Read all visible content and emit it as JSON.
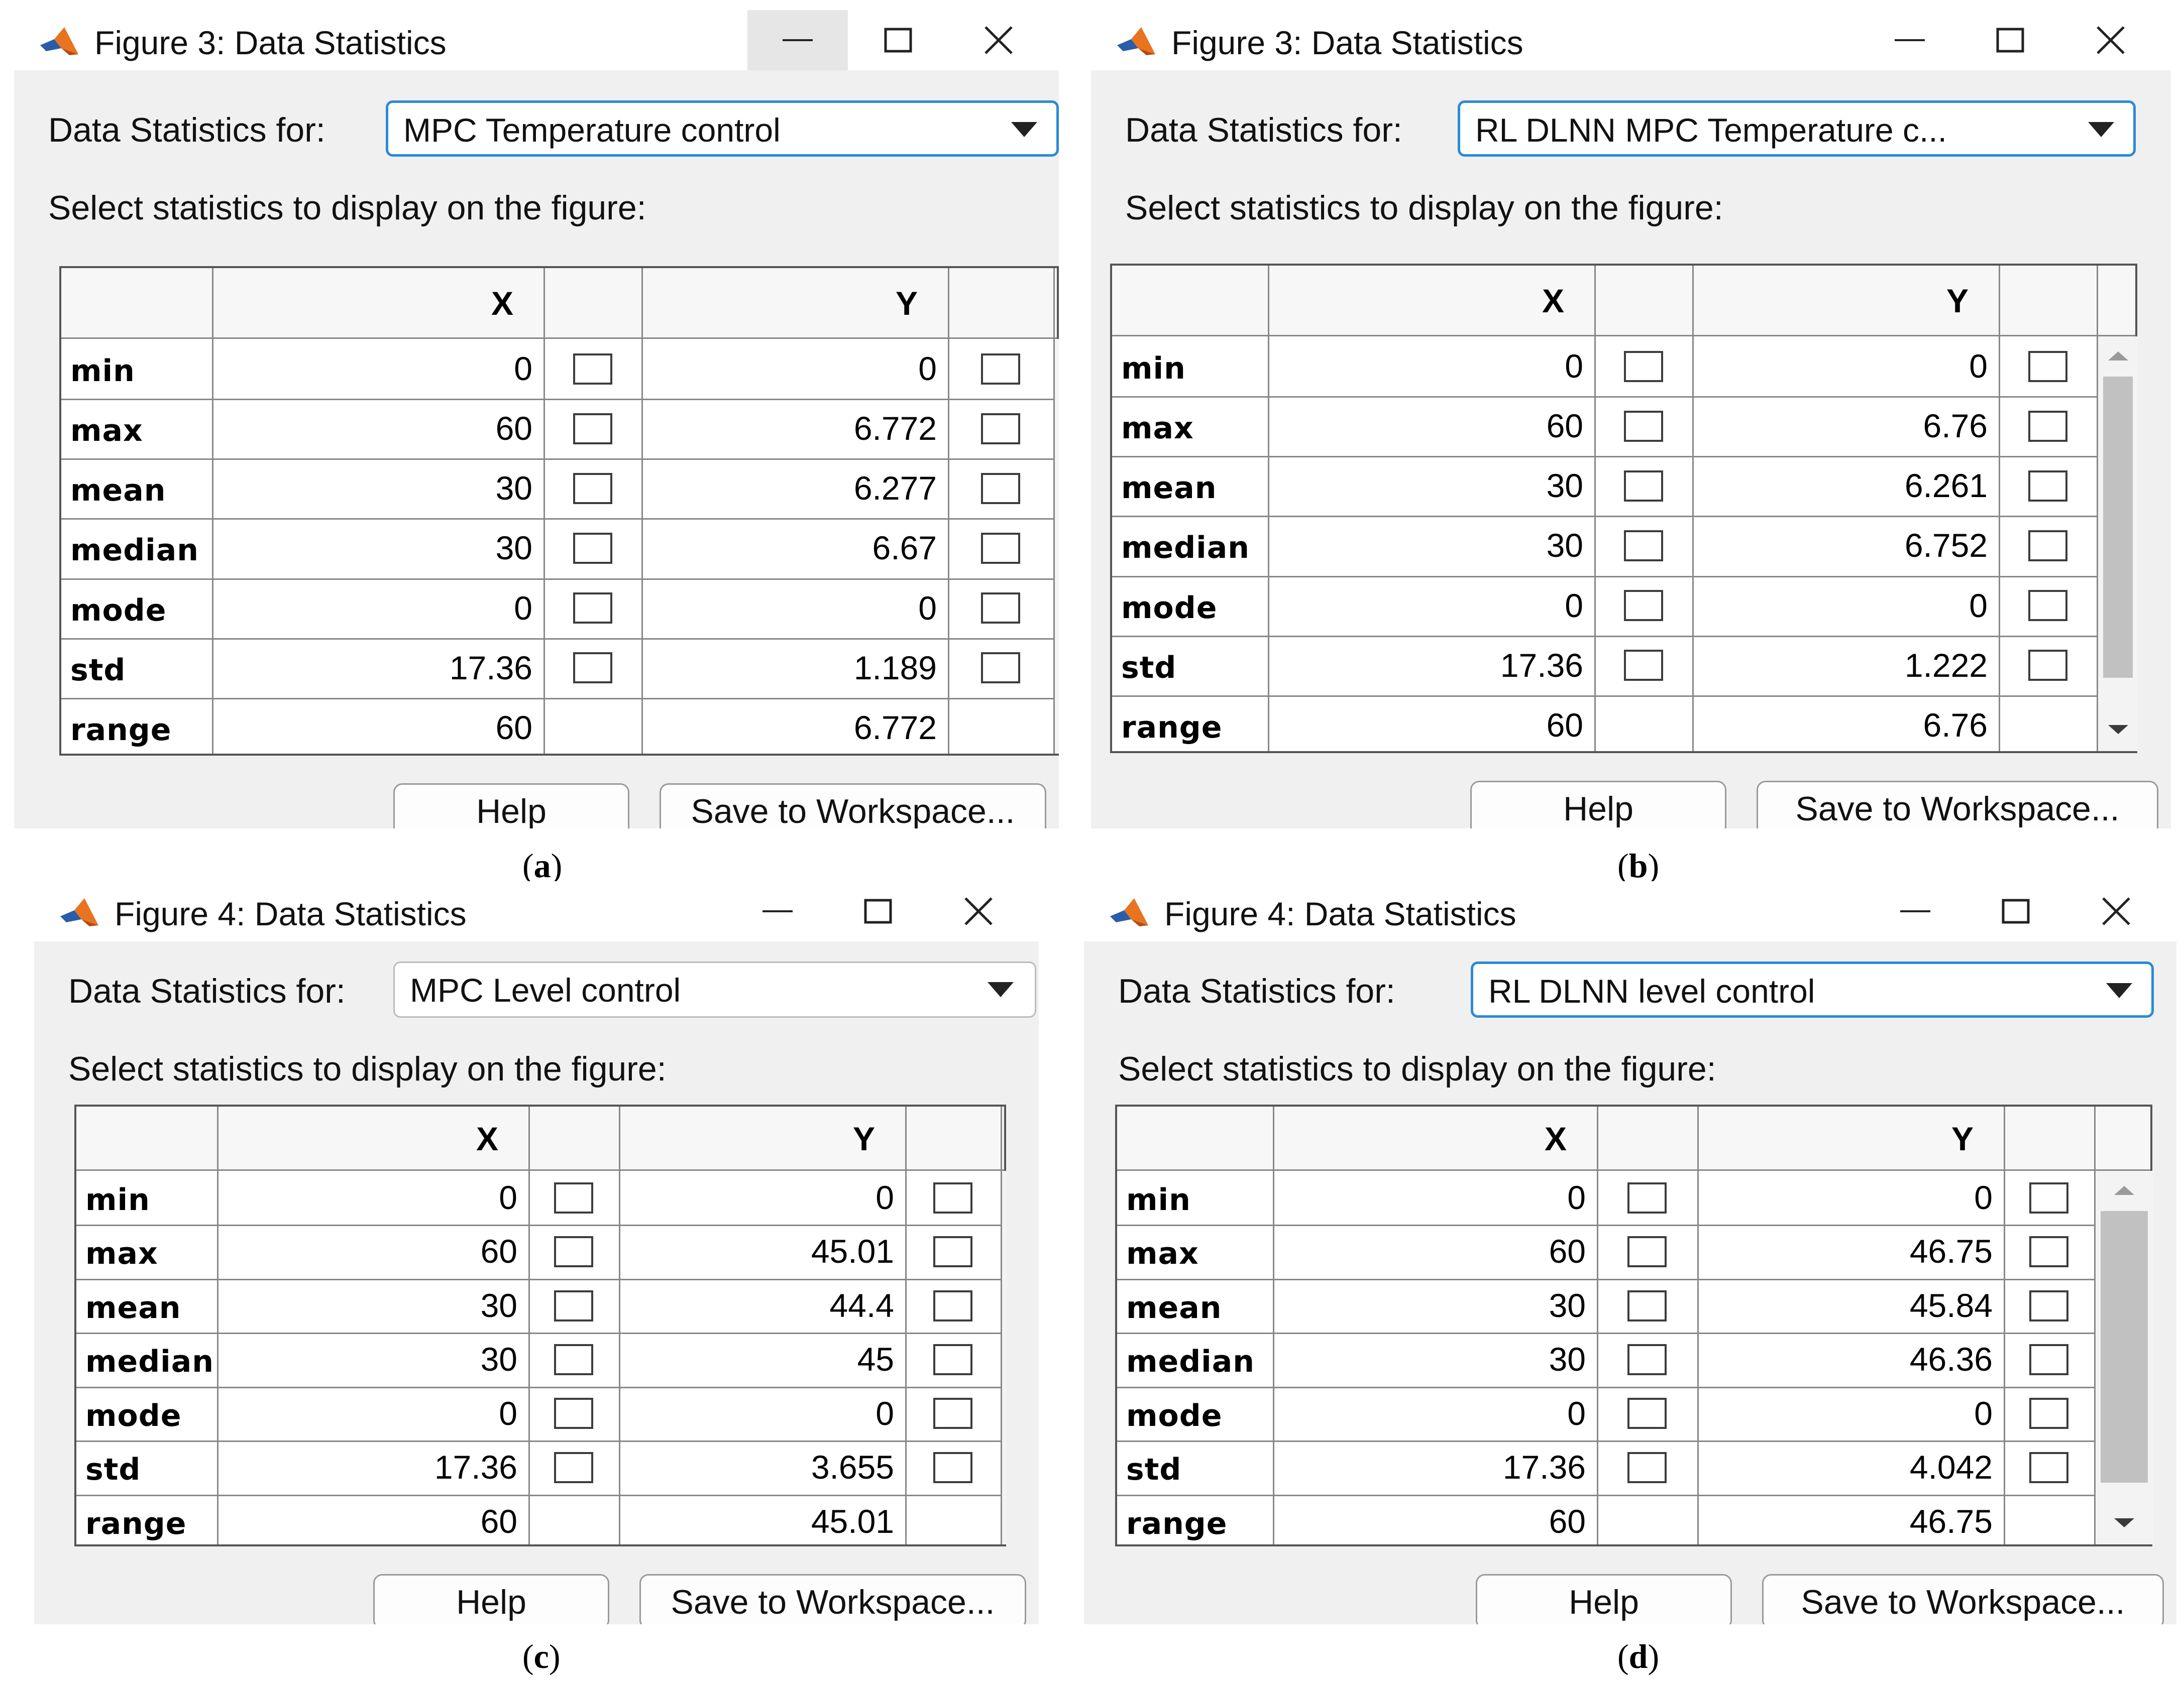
{
  "windows": [
    {
      "title": "Figure 3: Data Statistics",
      "data_stats_label": "Data Statistics for:",
      "dataset": "MPC Temperature control",
      "select_label": "Select statistics to display on the figure:",
      "col_x": "X",
      "col_y": "Y",
      "rows": [
        {
          "label": "min",
          "x": "0",
          "y": "0"
        },
        {
          "label": "max",
          "x": "60",
          "y": "6.772"
        },
        {
          "label": "mean",
          "x": "30",
          "y": "6.277"
        },
        {
          "label": "median",
          "x": "30",
          "y": "6.67"
        },
        {
          "label": "mode",
          "x": "0",
          "y": "0"
        },
        {
          "label": "std",
          "x": "17.36",
          "y": "1.189"
        },
        {
          "label": "range",
          "x": "60",
          "y": "6.772"
        }
      ],
      "help_label": "Help",
      "save_label": "Save to Workspace...",
      "caption_letter": "a"
    },
    {
      "title": "Figure 3: Data Statistics",
      "data_stats_label": "Data Statistics for:",
      "dataset": "RL DLNN MPC Temperature c...",
      "select_label": "Select statistics to display on the figure:",
      "col_x": "X",
      "col_y": "Y",
      "rows": [
        {
          "label": "min",
          "x": "0",
          "y": "0"
        },
        {
          "label": "max",
          "x": "60",
          "y": "6.76"
        },
        {
          "label": "mean",
          "x": "30",
          "y": "6.261"
        },
        {
          "label": "median",
          "x": "30",
          "y": "6.752"
        },
        {
          "label": "mode",
          "x": "0",
          "y": "0"
        },
        {
          "label": "std",
          "x": "17.36",
          "y": "1.222"
        },
        {
          "label": "range",
          "x": "60",
          "y": "6.76"
        }
      ],
      "help_label": "Help",
      "save_label": "Save to Workspace...",
      "caption_letter": "b"
    },
    {
      "title": "Figure 4: Data Statistics",
      "data_stats_label": "Data Statistics for:",
      "dataset": "MPC Level control",
      "select_label": "Select statistics to display on the figure:",
      "col_x": "X",
      "col_y": "Y",
      "rows": [
        {
          "label": "min",
          "x": "0",
          "y": "0"
        },
        {
          "label": "max",
          "x": "60",
          "y": "45.01"
        },
        {
          "label": "mean",
          "x": "30",
          "y": "44.4"
        },
        {
          "label": "median",
          "x": "30",
          "y": "45"
        },
        {
          "label": "mode",
          "x": "0",
          "y": "0"
        },
        {
          "label": "std",
          "x": "17.36",
          "y": "3.655"
        },
        {
          "label": "range",
          "x": "60",
          "y": "45.01"
        }
      ],
      "help_label": "Help",
      "save_label": "Save to Workspace...",
      "caption_letter": "c"
    },
    {
      "title": "Figure 4: Data Statistics",
      "data_stats_label": "Data Statistics for:",
      "dataset": "RL DLNN level control",
      "select_label": "Select statistics to display on the figure:",
      "col_x": "X",
      "col_y": "Y",
      "rows": [
        {
          "label": "min",
          "x": "0",
          "y": "0"
        },
        {
          "label": "max",
          "x": "60",
          "y": "46.75"
        },
        {
          "label": "mean",
          "x": "30",
          "y": "45.84"
        },
        {
          "label": "median",
          "x": "30",
          "y": "46.36"
        },
        {
          "label": "mode",
          "x": "0",
          "y": "0"
        },
        {
          "label": "std",
          "x": "17.36",
          "y": "4.042"
        },
        {
          "label": "range",
          "x": "60",
          "y": "46.75"
        }
      ],
      "help_label": "Help",
      "save_label": "Save to Workspace...",
      "caption_letter": "d"
    }
  ],
  "colors": {
    "dropdown_focus_border": "#2d8ad6",
    "window_background": "#f0f0f0",
    "matlab_icon_orange": "#e8741f",
    "matlab_icon_blue": "#2a5ca8"
  }
}
